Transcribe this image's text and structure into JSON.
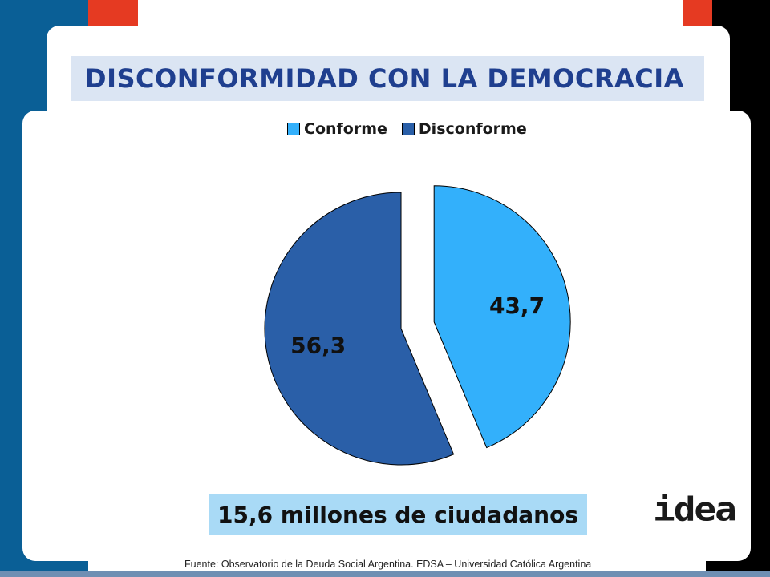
{
  "title": "DISCONFORMIDAD CON LA DEMOCRACIA",
  "callout": "15,6 millones de ciudadanos",
  "logo_text": "idea",
  "source": "Fuente:  Observatorio de  la Deuda Social Argentina. EDSA  – Universidad Católica Argentina",
  "chart_data": {
    "type": "pie",
    "title": "DISCONFORMIDAD CON LA DEMOCRACIA",
    "categories": [
      "Conforme",
      "Disconforme"
    ],
    "values": [
      43.7,
      56.3
    ],
    "value_labels": [
      "43,7",
      "56,3"
    ],
    "colors": [
      "#33b0fb",
      "#2a5fa8"
    ],
    "legend": {
      "position": "top",
      "entries": [
        "Conforme",
        "Disconforme"
      ]
    },
    "exploded": "Conforme"
  },
  "colors": {
    "left_band": "#0a5f96",
    "accent_red": "#e53a22",
    "title_bg": "#dbe5f3",
    "title_text": "#1f3f8f",
    "callout_bg": "#a9daf6"
  }
}
